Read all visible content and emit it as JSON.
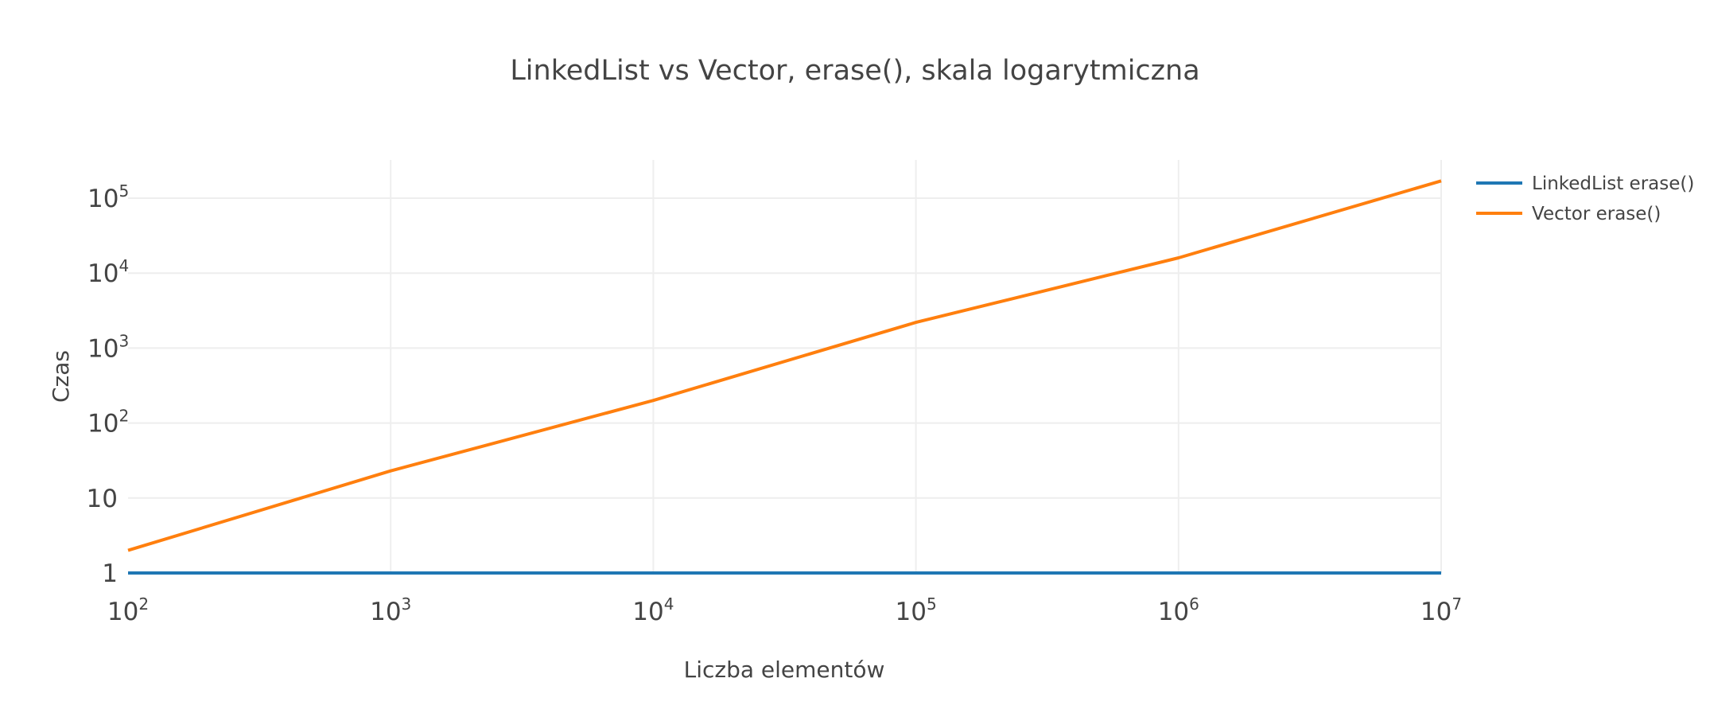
{
  "chart_data": {
    "type": "line",
    "title": "LinkedList vs Vector, erase(), skala logarytmiczna",
    "xlabel": "Liczba elementów",
    "ylabel": "Czas",
    "x_scale": "log",
    "y_scale": "log",
    "xlim": [
      100,
      10000000
    ],
    "ylim": [
      1,
      100000
    ],
    "grid": true,
    "legend_position": "right",
    "x_ticks": [
      {
        "base": "10",
        "exp": "2",
        "value": 100
      },
      {
        "base": "10",
        "exp": "3",
        "value": 1000
      },
      {
        "base": "10",
        "exp": "4",
        "value": 10000
      },
      {
        "base": "10",
        "exp": "5",
        "value": 100000
      },
      {
        "base": "10",
        "exp": "6",
        "value": 1000000
      },
      {
        "base": "10",
        "exp": "7",
        "value": 10000000
      }
    ],
    "y_ticks": [
      {
        "base": "1",
        "exp": "",
        "value": 1
      },
      {
        "base": "10",
        "exp": "",
        "value": 10
      },
      {
        "base": "10",
        "exp": "2",
        "value": 100
      },
      {
        "base": "10",
        "exp": "3",
        "value": 1000
      },
      {
        "base": "10",
        "exp": "4",
        "value": 10000
      },
      {
        "base": "10",
        "exp": "5",
        "value": 100000
      }
    ],
    "x": [
      100,
      1000,
      10000,
      100000,
      1000000,
      10000000
    ],
    "series": [
      {
        "name": "LinkedList erase()",
        "color": "#1f77b4",
        "values": [
          1,
          1,
          1,
          1,
          1,
          1
        ]
      },
      {
        "name": "Vector erase()",
        "color": "#ff7f0e",
        "values": [
          2,
          23,
          200,
          2200,
          16000,
          170000
        ]
      }
    ]
  }
}
